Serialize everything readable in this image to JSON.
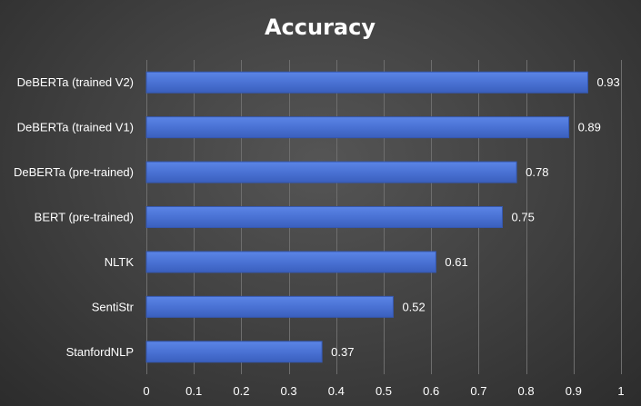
{
  "chart_data": {
    "type": "bar",
    "orientation": "horizontal",
    "title": "Accuracy",
    "categories": [
      "DeBERTa (trained V2)",
      "DeBERTa (trained V1)",
      "DeBERTa (pre-trained)",
      "BERT (pre-trained)",
      "NLTK",
      "SentiStr",
      "StanfordNLP"
    ],
    "values": [
      0.93,
      0.89,
      0.78,
      0.75,
      0.61,
      0.52,
      0.37
    ],
    "value_labels": [
      "0.93",
      "0.89",
      "0.78",
      "0.75",
      "0.61",
      "0.52",
      "0.37"
    ],
    "x_ticks": [
      "0",
      "0.1",
      "0.2",
      "0.3",
      "0.4",
      "0.5",
      "0.6",
      "0.7",
      "0.8",
      "0.9",
      "1"
    ],
    "xlim": [
      0,
      1
    ],
    "xlabel": "",
    "ylabel": "",
    "grid": "vertical",
    "legend": "none",
    "colors": {
      "bar": "#4a72d4",
      "bar_edge": "#3558b0",
      "background": "#3f3f3f",
      "grid": "#6e6e6e",
      "text": "#ffffff"
    }
  }
}
